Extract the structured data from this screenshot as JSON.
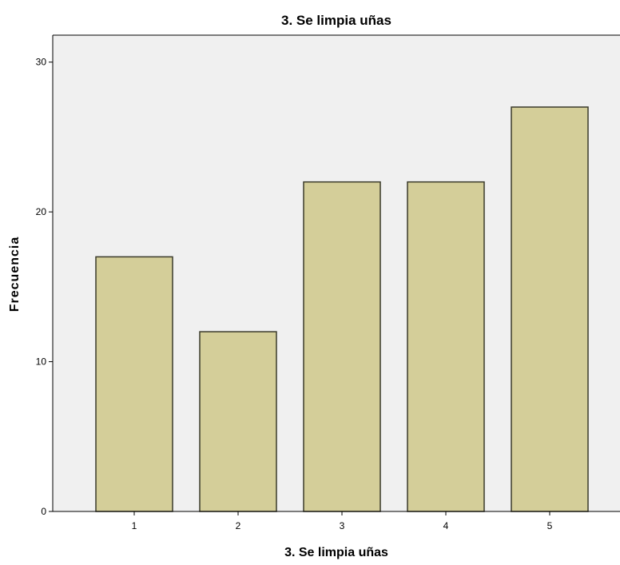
{
  "chart_data": {
    "type": "bar",
    "title": "3. Se limpia uñas",
    "xlabel": "3. Se limpia uñas",
    "ylabel": "Frecuencia",
    "categories": [
      "1",
      "2",
      "3",
      "4",
      "5"
    ],
    "values": [
      17,
      12,
      22,
      22,
      27
    ],
    "ylim": [
      0,
      31.8
    ],
    "yticks": [
      "0",
      "10",
      "20",
      "30"
    ],
    "grid": false,
    "legend": "none",
    "colors": {
      "bar_fill": "#d4ce99",
      "bar_stroke": "#3a3a2a",
      "plot_background": "#f0f0f0",
      "axis": "#000000"
    }
  }
}
